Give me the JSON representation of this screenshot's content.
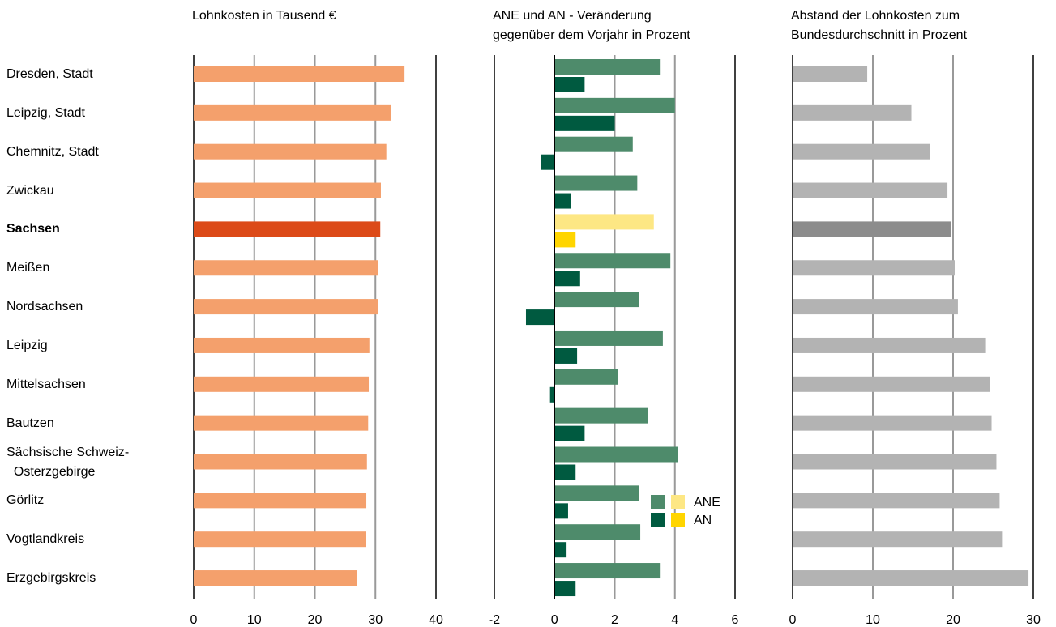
{
  "chart_data": [
    {
      "type": "hbar",
      "title": "Lohnkosten in Tausend €",
      "categories": [
        "Dresden, Stadt",
        "Leipzig, Stadt",
        "Chemnitz, Stadt",
        "Zwickau",
        "Sachsen",
        "Meißen",
        "Nordsachsen",
        "Leipzig",
        "Mittelsachsen",
        "Bautzen",
        "Sächsische Schweiz-\n  Osterzgebirge",
        "Görlitz",
        "Vogtlandkreis",
        "Erzgebirgskreis"
      ],
      "series": [
        {
          "values": [
            34.8,
            32.6,
            31.8,
            30.9,
            30.8,
            30.5,
            30.4,
            29.0,
            28.9,
            28.8,
            28.6,
            28.5,
            28.4,
            27.0
          ],
          "colors": [
            "#f4a06c",
            "#f4a06c",
            "#f4a06c",
            "#f4a06c",
            "#dc4a18",
            "#f4a06c",
            "#f4a06c",
            "#f4a06c",
            "#f4a06c",
            "#f4a06c",
            "#f4a06c",
            "#f4a06c",
            "#f4a06c",
            "#f4a06c"
          ]
        }
      ],
      "xlim": [
        0,
        40
      ],
      "xticks": [
        0,
        10,
        20,
        30,
        40
      ],
      "grid": true
    },
    {
      "type": "hbar",
      "title": "ANE und AN - Veränderung\ngegenüber dem Vorjahr in Prozent",
      "series": [
        {
          "name": "ANE",
          "values": [
            3.5,
            4.0,
            2.6,
            2.75,
            3.3,
            3.85,
            2.8,
            3.6,
            2.1,
            3.1,
            4.1,
            2.8,
            2.85,
            3.5
          ],
          "colors": [
            "#4e8b6b",
            "#4e8b6b",
            "#4e8b6b",
            "#4e8b6b",
            "#fde784",
            "#4e8b6b",
            "#4e8b6b",
            "#4e8b6b",
            "#4e8b6b",
            "#4e8b6b",
            "#4e8b6b",
            "#4e8b6b",
            "#4e8b6b",
            "#4e8b6b"
          ]
        },
        {
          "name": "AN",
          "values": [
            1.0,
            2.0,
            -0.45,
            0.55,
            0.7,
            0.85,
            -0.95,
            0.75,
            -0.15,
            1.0,
            0.7,
            0.45,
            0.4,
            0.7
          ],
          "colors": [
            "#005a40",
            "#005a40",
            "#005a40",
            "#005a40",
            "#ffd500",
            "#005a40",
            "#005a40",
            "#005a40",
            "#005a40",
            "#005a40",
            "#005a40",
            "#005a40",
            "#005a40",
            "#005a40"
          ]
        }
      ],
      "xlim": [
        -2,
        6
      ],
      "xticks": [
        -2,
        0,
        2,
        4,
        6
      ],
      "grid": true,
      "legend": "lower right"
    },
    {
      "type": "hbar",
      "title": "Abstand der Lohnkosten zum\nBundesdurchschnitt in Prozent",
      "series": [
        {
          "values": [
            9.3,
            14.8,
            17.1,
            19.3,
            19.7,
            20.2,
            20.6,
            24.1,
            24.6,
            24.8,
            25.4,
            25.8,
            26.1,
            29.4
          ],
          "colors": [
            "#b3b3b3",
            "#b3b3b3",
            "#b3b3b3",
            "#b3b3b3",
            "#8c8c8c",
            "#b3b3b3",
            "#b3b3b3",
            "#b3b3b3",
            "#b3b3b3",
            "#b3b3b3",
            "#b3b3b3",
            "#b3b3b3",
            "#b3b3b3",
            "#b3b3b3"
          ]
        }
      ],
      "xlim": [
        0,
        30
      ],
      "xticks": [
        0,
        10,
        20,
        30
      ],
      "grid": true
    }
  ]
}
